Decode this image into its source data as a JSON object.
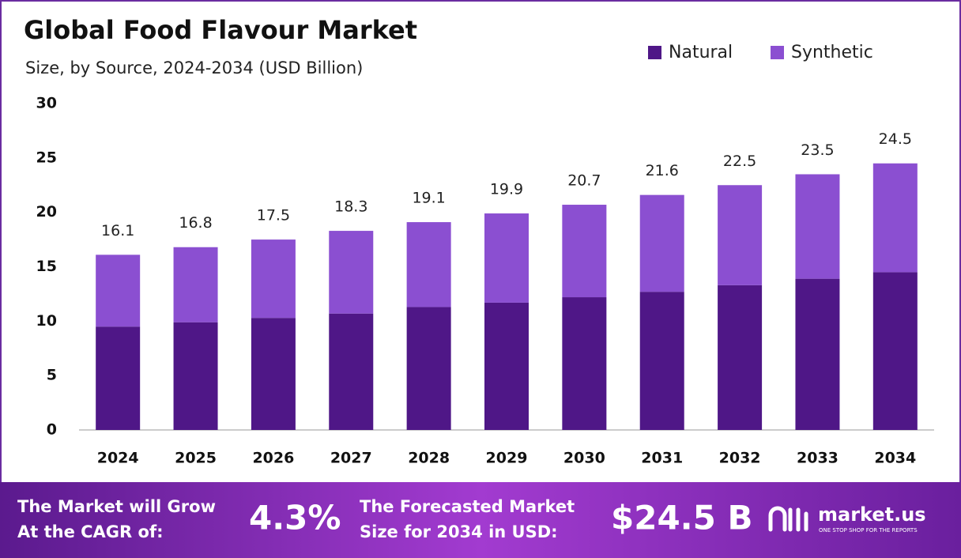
{
  "chart_data": {
    "type": "stacked_bar",
    "title": "Global Food Flavour Market",
    "subtitle": "Size, by Source, 2024-2034 (USD Billion)",
    "categories": [
      "2024",
      "2025",
      "2026",
      "2027",
      "2028",
      "2029",
      "2030",
      "2031",
      "2032",
      "2033",
      "2034"
    ],
    "series": [
      {
        "name": "Natural",
        "color": "#4f1787",
        "values": [
          9.5,
          9.9,
          10.3,
          10.7,
          11.3,
          11.7,
          12.2,
          12.7,
          13.3,
          13.9,
          14.5
        ]
      },
      {
        "name": "Synthetic",
        "color": "#8b4fd1",
        "values": [
          6.6,
          6.9,
          7.2,
          7.6,
          7.8,
          8.2,
          8.5,
          8.9,
          9.2,
          9.6,
          10.0
        ]
      }
    ],
    "totals": [
      16.1,
      16.8,
      17.5,
      18.3,
      19.1,
      19.9,
      20.7,
      21.6,
      22.5,
      23.5,
      24.5
    ],
    "ylim": [
      0,
      30
    ],
    "yticks": [
      0,
      5,
      10,
      15,
      20,
      25,
      30
    ],
    "grid": false,
    "legend": "top-right"
  },
  "footer": {
    "cagr_text": [
      "The Market will Grow",
      "At the CAGR of:"
    ],
    "cagr_value": "4.3%",
    "forecast_text": [
      "The Forecasted Market",
      "Size for 2034 in USD:"
    ],
    "forecast_value": "$24.5 B",
    "brand": "market.us",
    "tagline": "ONE STOP SHOP FOR THE REPORTS"
  }
}
